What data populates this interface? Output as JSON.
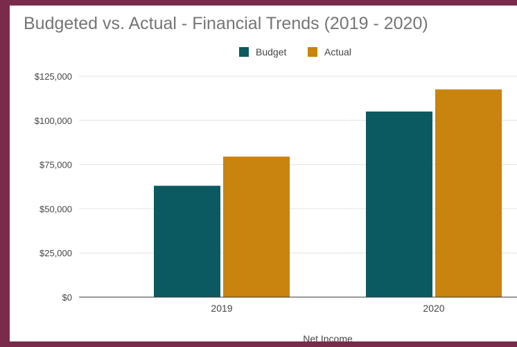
{
  "chart_data": {
    "type": "bar",
    "title": "Budgeted vs. Actual - Financial Trends (2019 - 2020)",
    "xlabel": "Net Income",
    "ylabel": "",
    "categories": [
      "2019",
      "2020"
    ],
    "series": [
      {
        "name": "Budget",
        "values": [
          63000,
          105000
        ],
        "color": "#0b5a61"
      },
      {
        "name": "Actual",
        "values": [
          79500,
          117500
        ],
        "color": "#c9830f"
      }
    ],
    "ylim": [
      0,
      125000
    ],
    "yticks": [
      0,
      25000,
      50000,
      75000,
      100000,
      125000
    ],
    "ytick_labels": [
      "$0",
      "$25,000",
      "$50,000",
      "$75,000",
      "$100,000",
      "$125,000"
    ],
    "grid": true,
    "legend_position": "top-center"
  },
  "colors": {
    "frame": "#7a2a4a",
    "title_text": "#757575",
    "axis_text": "#444444",
    "gridline": "#e2e2e2",
    "baseline": "#333333"
  }
}
